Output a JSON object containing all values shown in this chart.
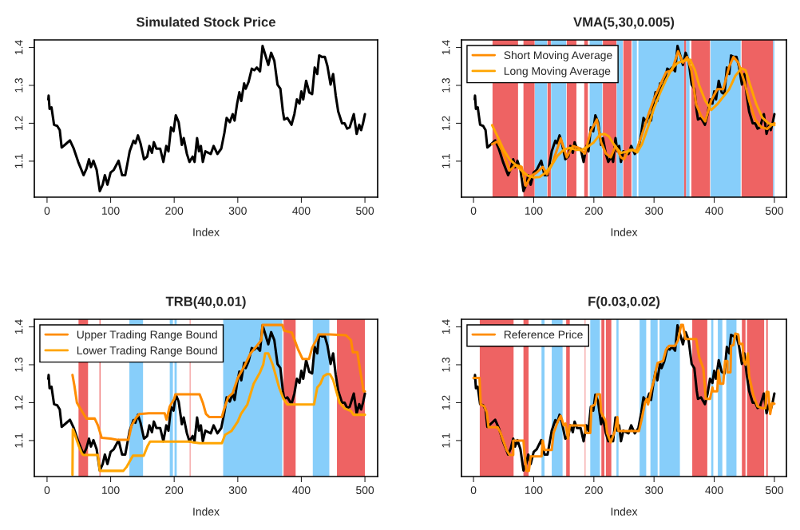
{
  "chart_data": [
    {
      "type": "line",
      "title": "Simulated Stock Price",
      "xlabel": "Index",
      "xlim": [
        -20,
        520
      ],
      "xticks": [
        0,
        100,
        200,
        300,
        400,
        500
      ],
      "ylim": [
        1.005,
        1.42
      ],
      "yticks": [
        1.1,
        1.2,
        1.3,
        1.4
      ],
      "grid": false,
      "legend": false,
      "series": [
        {
          "color": "#000000",
          "x": [
            2,
            2.5,
            4,
            7,
            11,
            16,
            20,
            23,
            28,
            36,
            42,
            49,
            57.5,
            62,
            66,
            69,
            73,
            78,
            83,
            87.5,
            91,
            95,
            100,
            105,
            112.5,
            118,
            123,
            130,
            136,
            139,
            143,
            147,
            152.5,
            157.5,
            161,
            165,
            168,
            172,
            178,
            183,
            187.5,
            191,
            195,
            199,
            202.5,
            207,
            212,
            215,
            220,
            224,
            229,
            232,
            236,
            239,
            242,
            245,
            249,
            257.5,
            262,
            268,
            274,
            279,
            282.5,
            287.5,
            292,
            295,
            299,
            302.5,
            305.5,
            310,
            312.5,
            317,
            322,
            326,
            330,
            335,
            339,
            343,
            348,
            352.5,
            357.5,
            362.5,
            367,
            371,
            373,
            378,
            384.5,
            389,
            393,
            397,
            400,
            403,
            407.5,
            412.5,
            417,
            421,
            425,
            428,
            432.5,
            437,
            441,
            446,
            450,
            454,
            458,
            464,
            468,
            472,
            476,
            482.5,
            487,
            491,
            494,
            497,
            500
          ],
          "values": [
            1.263,
            1.273,
            1.238,
            1.242,
            1.196,
            1.193,
            1.182,
            1.136,
            1.143,
            1.155,
            1.133,
            1.098,
            1.063,
            1.08,
            1.105,
            1.084,
            1.101,
            1.077,
            1.021,
            1.038,
            1.063,
            1.038,
            1.07,
            1.077,
            1.101,
            1.063,
            1.063,
            1.126,
            1.154,
            1.147,
            1.168,
            1.147,
            1.105,
            1.112,
            1.14,
            1.122,
            1.15,
            1.133,
            1.133,
            1.098,
            1.14,
            1.126,
            1.189,
            1.179,
            1.221,
            1.203,
            1.143,
            1.161,
            1.119,
            1.098,
            1.112,
            1.098,
            1.161,
            1.126,
            1.14,
            1.098,
            1.126,
            1.119,
            1.14,
            1.119,
            1.133,
            1.175,
            1.214,
            1.203,
            1.224,
            1.207,
            1.252,
            1.282,
            1.259,
            1.305,
            1.291,
            1.309,
            1.344,
            1.34,
            1.347,
            1.337,
            1.404,
            1.382,
            1.354,
            1.386,
            1.365,
            1.302,
            1.291,
            1.231,
            1.21,
            1.214,
            1.196,
            1.224,
            1.263,
            1.252,
            1.284,
            1.263,
            1.312,
            1.281,
            1.277,
            1.347,
            1.33,
            1.379,
            1.375,
            1.375,
            1.351,
            1.302,
            1.33,
            1.274,
            1.231,
            1.2,
            1.2,
            1.186,
            1.189,
            1.224,
            1.172,
            1.196,
            1.182,
            1.2,
            1.224
          ]
        }
      ]
    },
    {
      "type": "line",
      "title": "VMA(5,30,0.005)",
      "xlabel": "Index",
      "xlim": [
        -20,
        520
      ],
      "xticks": [
        0,
        100,
        200,
        300,
        400,
        500
      ],
      "ylim": [
        1.005,
        1.42
      ],
      "yticks": [
        1.1,
        1.2,
        1.3,
        1.4
      ],
      "grid": false,
      "legend": "top left",
      "bands": [
        {
          "axis": "x",
          "from": 31.6,
          "to": 74,
          "color": "#ee6363"
        },
        {
          "axis": "x",
          "from": 83,
          "to": 101.5,
          "color": "#ee6363"
        },
        {
          "axis": "x",
          "from": 102,
          "to": 122,
          "color": "#87cefa"
        },
        {
          "axis": "x",
          "from": 123,
          "to": 128.5,
          "color": "#ee6363"
        },
        {
          "axis": "x",
          "from": 129,
          "to": 154,
          "color": "#87cefa"
        },
        {
          "axis": "x",
          "from": 155,
          "to": 171,
          "color": "#ee6363"
        },
        {
          "axis": "x",
          "from": 184,
          "to": 190,
          "color": "#ee6363"
        },
        {
          "axis": "x",
          "from": 193,
          "to": 214,
          "color": "#87cefa"
        },
        {
          "axis": "x",
          "from": 215,
          "to": 237.5,
          "color": "#ee6363"
        },
        {
          "axis": "x",
          "from": 238,
          "to": 248,
          "color": "#87cefa"
        },
        {
          "axis": "x",
          "from": 249,
          "to": 262.5,
          "color": "#ee6363"
        },
        {
          "axis": "x",
          "from": 264,
          "to": 271.5,
          "color": "#87cefa"
        },
        {
          "axis": "x",
          "from": 274,
          "to": 350,
          "color": "#87cefa"
        },
        {
          "axis": "x",
          "from": 350,
          "to": 353.5,
          "color": "#ee6363"
        },
        {
          "axis": "x",
          "from": 353.5,
          "to": 359,
          "color": "#87cefa"
        },
        {
          "axis": "x",
          "from": 362,
          "to": 393,
          "color": "#ee6363"
        },
        {
          "axis": "x",
          "from": 394,
          "to": 444,
          "color": "#87cefa"
        },
        {
          "axis": "x",
          "from": 445.5,
          "to": 498,
          "color": "#ee6363"
        },
        {
          "axis": "x",
          "from": 498,
          "to": 500,
          "color": "#87cefa"
        }
      ],
      "series": [
        {
          "color": "#000000",
          "x": [
            2,
            2.5,
            4,
            7,
            11,
            16,
            20,
            23,
            28,
            36,
            42,
            49,
            57.5,
            62,
            66,
            69,
            73,
            78,
            83,
            87.5,
            91,
            95,
            100,
            105,
            112.5,
            118,
            123,
            130,
            136,
            139,
            143,
            147,
            152.5,
            157.5,
            161,
            165,
            168,
            172,
            178,
            183,
            187.5,
            191,
            195,
            199,
            202.5,
            207,
            212,
            215,
            220,
            224,
            229,
            232,
            236,
            239,
            242,
            245,
            249,
            257.5,
            262,
            268,
            274,
            279,
            282.5,
            287.5,
            292,
            295,
            299,
            302.5,
            305.5,
            310,
            312.5,
            317,
            322,
            326,
            330,
            335,
            339,
            343,
            348,
            352.5,
            357.5,
            362.5,
            367,
            371,
            373,
            378,
            384.5,
            389,
            393,
            397,
            400,
            403,
            407.5,
            412.5,
            417,
            421,
            425,
            428,
            432.5,
            437,
            441,
            446,
            450,
            454,
            458,
            464,
            468,
            472,
            476,
            482.5,
            487,
            491,
            494,
            497,
            500
          ],
          "values": [
            1.263,
            1.273,
            1.238,
            1.242,
            1.196,
            1.193,
            1.182,
            1.136,
            1.143,
            1.155,
            1.133,
            1.098,
            1.063,
            1.08,
            1.105,
            1.084,
            1.101,
            1.077,
            1.021,
            1.038,
            1.063,
            1.038,
            1.07,
            1.077,
            1.101,
            1.063,
            1.063,
            1.126,
            1.154,
            1.147,
            1.168,
            1.147,
            1.105,
            1.112,
            1.14,
            1.122,
            1.15,
            1.133,
            1.133,
            1.098,
            1.14,
            1.126,
            1.189,
            1.179,
            1.221,
            1.203,
            1.143,
            1.161,
            1.119,
            1.098,
            1.112,
            1.098,
            1.161,
            1.126,
            1.14,
            1.098,
            1.126,
            1.119,
            1.14,
            1.119,
            1.133,
            1.175,
            1.214,
            1.203,
            1.224,
            1.207,
            1.252,
            1.282,
            1.259,
            1.305,
            1.291,
            1.309,
            1.344,
            1.34,
            1.347,
            1.337,
            1.404,
            1.382,
            1.354,
            1.386,
            1.365,
            1.302,
            1.291,
            1.231,
            1.21,
            1.214,
            1.196,
            1.224,
            1.263,
            1.252,
            1.284,
            1.263,
            1.312,
            1.281,
            1.277,
            1.347,
            1.33,
            1.379,
            1.375,
            1.375,
            1.351,
            1.302,
            1.33,
            1.274,
            1.231,
            1.2,
            1.2,
            1.186,
            1.189,
            1.224,
            1.172,
            1.196,
            1.182,
            1.2,
            1.224
          ]
        },
        {
          "name": "Short Moving Average",
          "color": "#ff8c00",
          "x": [
            31,
            40,
            50,
            60,
            70,
            80,
            87,
            95,
            105,
            115,
            122,
            130,
            145,
            155,
            165,
            175,
            185,
            195,
            205,
            212,
            220,
            228,
            236,
            245,
            250,
            258,
            265,
            270,
            280,
            290,
            300,
            310,
            320,
            330,
            340,
            348,
            355,
            362,
            370,
            378,
            385,
            395,
            405,
            415,
            425,
            432,
            440,
            450,
            458,
            468,
            478,
            488,
            495,
            500
          ],
          "values": [
            1.145,
            1.152,
            1.12,
            1.075,
            1.09,
            1.085,
            1.035,
            1.06,
            1.07,
            1.085,
            1.065,
            1.09,
            1.16,
            1.11,
            1.14,
            1.135,
            1.12,
            1.18,
            1.21,
            1.15,
            1.12,
            1.11,
            1.14,
            1.11,
            1.105,
            1.13,
            1.13,
            1.125,
            1.17,
            1.22,
            1.265,
            1.3,
            1.335,
            1.34,
            1.39,
            1.36,
            1.375,
            1.34,
            1.25,
            1.22,
            1.205,
            1.26,
            1.29,
            1.29,
            1.35,
            1.375,
            1.36,
            1.31,
            1.26,
            1.21,
            1.19,
            1.185,
            1.195,
            1.2
          ]
        },
        {
          "name": "Long Moving Average",
          "color": "#ffa500",
          "x": [
            31,
            40,
            50,
            60,
            70,
            80,
            90,
            100,
            110,
            120,
            130,
            140,
            150,
            160,
            170,
            180,
            190,
            200,
            210,
            218,
            225,
            235,
            245,
            255,
            265,
            272,
            280,
            290,
            300,
            310,
            320,
            330,
            340,
            350,
            360,
            368,
            375,
            385,
            395,
            405,
            415,
            425,
            435,
            445,
            452,
            460,
            470,
            480,
            490,
            500
          ],
          "values": [
            1.195,
            1.165,
            1.13,
            1.105,
            1.09,
            1.075,
            1.062,
            1.057,
            1.058,
            1.07,
            1.09,
            1.115,
            1.13,
            1.135,
            1.13,
            1.13,
            1.138,
            1.15,
            1.17,
            1.172,
            1.165,
            1.14,
            1.122,
            1.125,
            1.13,
            1.123,
            1.145,
            1.19,
            1.24,
            1.28,
            1.315,
            1.345,
            1.36,
            1.365,
            1.368,
            1.34,
            1.3,
            1.26,
            1.235,
            1.25,
            1.27,
            1.29,
            1.325,
            1.345,
            1.34,
            1.3,
            1.25,
            1.215,
            1.2,
            1.195
          ]
        }
      ]
    },
    {
      "type": "line",
      "title": "TRB(40,0.01)",
      "xlabel": "Index",
      "xlim": [
        -20,
        520
      ],
      "xticks": [
        0,
        100,
        200,
        300,
        400,
        500
      ],
      "ylim": [
        1.005,
        1.42
      ],
      "yticks": [
        1.1,
        1.2,
        1.3,
        1.4
      ],
      "grid": false,
      "legend": "top left",
      "bands": [
        {
          "axis": "x",
          "from": 49.5,
          "to": 64.5,
          "color": "#ee6363"
        },
        {
          "axis": "x",
          "from": 82.5,
          "to": 84,
          "color": "#ee6363"
        },
        {
          "axis": "x",
          "from": 129.5,
          "to": 151,
          "color": "#87cefa"
        },
        {
          "axis": "x",
          "from": 193,
          "to": 198,
          "color": "#87cefa"
        },
        {
          "axis": "x",
          "from": 200.5,
          "to": 204,
          "color": "#87cefa"
        },
        {
          "axis": "x",
          "from": 224.5,
          "to": 225.5,
          "color": "#ee6363"
        },
        {
          "axis": "x",
          "from": 277,
          "to": 370,
          "color": "#87cefa"
        },
        {
          "axis": "x",
          "from": 372,
          "to": 391,
          "color": "#ee6363"
        },
        {
          "axis": "x",
          "from": 418,
          "to": 444,
          "color": "#87cefa"
        },
        {
          "axis": "x",
          "from": 456,
          "to": 500,
          "color": "#ee6363"
        }
      ],
      "series": [
        {
          "color": "#000000",
          "x": [
            2,
            2.5,
            4,
            7,
            11,
            16,
            20,
            23,
            28,
            36,
            42,
            49,
            57.5,
            62,
            66,
            69,
            73,
            78,
            83,
            87.5,
            91,
            95,
            100,
            105,
            112.5,
            118,
            123,
            130,
            136,
            139,
            143,
            147,
            152.5,
            157.5,
            161,
            165,
            168,
            172,
            178,
            183,
            187.5,
            191,
            195,
            199,
            202.5,
            207,
            212,
            215,
            220,
            224,
            229,
            232,
            236,
            239,
            242,
            245,
            249,
            257.5,
            262,
            268,
            274,
            279,
            282.5,
            287.5,
            292,
            295,
            299,
            302.5,
            305.5,
            310,
            312.5,
            317,
            322,
            326,
            330,
            335,
            339,
            343,
            348,
            352.5,
            357.5,
            362.5,
            367,
            371,
            373,
            378,
            384.5,
            389,
            393,
            397,
            400,
            403,
            407.5,
            412.5,
            417,
            421,
            425,
            428,
            432.5,
            437,
            441,
            446,
            450,
            454,
            458,
            464,
            468,
            472,
            476,
            482.5,
            487,
            491,
            494,
            497,
            500
          ],
          "values": [
            1.263,
            1.273,
            1.238,
            1.242,
            1.196,
            1.193,
            1.182,
            1.136,
            1.143,
            1.155,
            1.133,
            1.098,
            1.063,
            1.08,
            1.105,
            1.084,
            1.101,
            1.077,
            1.021,
            1.038,
            1.063,
            1.038,
            1.07,
            1.077,
            1.101,
            1.063,
            1.063,
            1.126,
            1.154,
            1.147,
            1.168,
            1.147,
            1.105,
            1.112,
            1.14,
            1.122,
            1.15,
            1.133,
            1.133,
            1.098,
            1.14,
            1.126,
            1.189,
            1.179,
            1.221,
            1.203,
            1.143,
            1.161,
            1.119,
            1.098,
            1.112,
            1.098,
            1.161,
            1.126,
            1.14,
            1.098,
            1.126,
            1.119,
            1.14,
            1.119,
            1.133,
            1.175,
            1.214,
            1.203,
            1.224,
            1.207,
            1.252,
            1.282,
            1.259,
            1.305,
            1.291,
            1.309,
            1.344,
            1.34,
            1.347,
            1.337,
            1.404,
            1.382,
            1.354,
            1.386,
            1.365,
            1.302,
            1.291,
            1.231,
            1.21,
            1.214,
            1.196,
            1.224,
            1.263,
            1.252,
            1.284,
            1.263,
            1.312,
            1.281,
            1.277,
            1.347,
            1.33,
            1.379,
            1.375,
            1.375,
            1.351,
            1.302,
            1.33,
            1.274,
            1.231,
            1.2,
            1.2,
            1.186,
            1.189,
            1.224,
            1.172,
            1.196,
            1.182,
            1.2,
            1.224
          ]
        },
        {
          "name": "Upper Trading Range Bound",
          "color": "#ff8c00",
          "x": [
            40,
            43,
            47,
            52,
            62,
            75,
            80,
            86,
            100,
            110,
            128,
            133,
            140,
            145,
            160,
            185,
            188,
            193,
            200,
            202,
            240,
            245,
            250,
            255,
            275,
            278,
            285,
            292,
            300,
            310,
            320,
            330,
            337,
            339,
            370,
            373,
            385,
            395,
            402,
            412,
            417,
            425,
            427,
            445,
            470,
            478,
            481,
            488,
            493,
            498,
            500
          ],
          "values": [
            1.273,
            1.245,
            1.2,
            1.185,
            1.158,
            1.158,
            1.14,
            1.107,
            1.105,
            1.102,
            1.102,
            1.14,
            1.16,
            1.17,
            1.172,
            1.172,
            1.155,
            1.19,
            1.21,
            1.222,
            1.222,
            1.2,
            1.17,
            1.162,
            1.162,
            1.18,
            1.215,
            1.225,
            1.265,
            1.295,
            1.33,
            1.35,
            1.365,
            1.405,
            1.405,
            1.39,
            1.385,
            1.34,
            1.315,
            1.315,
            1.345,
            1.37,
            1.38,
            1.38,
            1.378,
            1.365,
            1.333,
            1.333,
            1.28,
            1.23,
            1.23
          ]
        },
        {
          "name": "Lower Trading Range Bound",
          "color": "#ffa500",
          "x": [
            40,
            40.5,
            45,
            50,
            55,
            57,
            80,
            83,
            120,
            125,
            130,
            135,
            152,
            158,
            162,
            190,
            225,
            230,
            240,
            275,
            280,
            290,
            300,
            305,
            315,
            325,
            335,
            340,
            343,
            348,
            355,
            365,
            372,
            378,
            420,
            425,
            430,
            435,
            440,
            445,
            450,
            455,
            460,
            468,
            478,
            482,
            500
          ],
          "values": [
            1.01,
            1.13,
            1.11,
            1.085,
            1.065,
            1.062,
            1.062,
            1.02,
            1.02,
            1.03,
            1.045,
            1.06,
            1.06,
            1.085,
            1.097,
            1.097,
            1.097,
            1.095,
            1.093,
            1.093,
            1.115,
            1.125,
            1.15,
            1.17,
            1.195,
            1.25,
            1.28,
            1.3,
            1.33,
            1.33,
            1.3,
            1.24,
            1.21,
            1.195,
            1.195,
            1.24,
            1.25,
            1.27,
            1.275,
            1.275,
            1.26,
            1.23,
            1.2,
            1.185,
            1.178,
            1.168,
            1.168
          ]
        }
      ]
    },
    {
      "type": "line",
      "title": "F(0.03,0.02)",
      "xlabel": "Index",
      "xlim": [
        -20,
        520
      ],
      "xticks": [
        0,
        100,
        200,
        300,
        400,
        500
      ],
      "ylim": [
        1.005,
        1.42
      ],
      "yticks": [
        1.1,
        1.2,
        1.3,
        1.4
      ],
      "grid": false,
      "legend": "top left",
      "bands": [
        {
          "axis": "x",
          "from": 10.4,
          "to": 66.6,
          "color": "#ee6363"
        },
        {
          "axis": "x",
          "from": 83,
          "to": 91.5,
          "color": "#ee6363"
        },
        {
          "axis": "x",
          "from": 113,
          "to": 118,
          "color": "#87cefa"
        },
        {
          "axis": "x",
          "from": 130,
          "to": 148,
          "color": "#87cefa"
        },
        {
          "axis": "x",
          "from": 154,
          "to": 160,
          "color": "#ee6363"
        },
        {
          "axis": "x",
          "from": 185,
          "to": 186,
          "color": "#ee6363"
        },
        {
          "axis": "x",
          "from": 194,
          "to": 210,
          "color": "#87cefa"
        },
        {
          "axis": "x",
          "from": 212.5,
          "to": 217.5,
          "color": "#ee6363"
        },
        {
          "axis": "x",
          "from": 220,
          "to": 229,
          "color": "#ee6363"
        },
        {
          "axis": "x",
          "from": 237.5,
          "to": 241,
          "color": "#87cefa"
        },
        {
          "axis": "x",
          "from": 276,
          "to": 287,
          "color": "#87cefa"
        },
        {
          "axis": "x",
          "from": 294,
          "to": 306,
          "color": "#87cefa"
        },
        {
          "axis": "x",
          "from": 309,
          "to": 343,
          "color": "#87cefa"
        },
        {
          "axis": "x",
          "from": 363.5,
          "to": 388.5,
          "color": "#ee6363"
        },
        {
          "axis": "x",
          "from": 395,
          "to": 398.5,
          "color": "#87cefa"
        },
        {
          "axis": "x",
          "from": 406,
          "to": 413.5,
          "color": "#87cefa"
        },
        {
          "axis": "x",
          "from": 420,
          "to": 437,
          "color": "#87cefa"
        },
        {
          "axis": "x",
          "from": 446,
          "to": 452,
          "color": "#ee6363"
        },
        {
          "axis": "x",
          "from": 454.5,
          "to": 483,
          "color": "#ee6363"
        },
        {
          "axis": "x",
          "from": 486.5,
          "to": 489,
          "color": "#ee6363"
        }
      ],
      "series": [
        {
          "color": "#000000",
          "x": [
            2,
            2.5,
            4,
            7,
            11,
            16,
            20,
            23,
            28,
            36,
            42,
            49,
            57.5,
            62,
            66,
            69,
            73,
            78,
            83,
            87.5,
            91,
            95,
            100,
            105,
            112.5,
            118,
            123,
            130,
            136,
            139,
            143,
            147,
            152.5,
            157.5,
            161,
            165,
            168,
            172,
            178,
            183,
            187.5,
            191,
            195,
            199,
            202.5,
            207,
            212,
            215,
            220,
            224,
            229,
            232,
            236,
            239,
            242,
            245,
            249,
            257.5,
            262,
            268,
            274,
            279,
            282.5,
            287.5,
            292,
            295,
            299,
            302.5,
            305.5,
            310,
            312.5,
            317,
            322,
            326,
            330,
            335,
            339,
            343,
            348,
            352.5,
            357.5,
            362.5,
            367,
            371,
            373,
            378,
            384.5,
            389,
            393,
            397,
            400,
            403,
            407.5,
            412.5,
            417,
            421,
            425,
            428,
            432.5,
            437,
            441,
            446,
            450,
            454,
            458,
            464,
            468,
            472,
            476,
            482.5,
            487,
            491,
            494,
            497,
            500
          ],
          "values": [
            1.263,
            1.273,
            1.238,
            1.242,
            1.196,
            1.193,
            1.182,
            1.136,
            1.143,
            1.155,
            1.133,
            1.098,
            1.063,
            1.08,
            1.105,
            1.084,
            1.101,
            1.077,
            1.021,
            1.038,
            1.063,
            1.038,
            1.07,
            1.077,
            1.101,
            1.063,
            1.063,
            1.126,
            1.154,
            1.147,
            1.168,
            1.147,
            1.105,
            1.112,
            1.14,
            1.122,
            1.15,
            1.133,
            1.133,
            1.098,
            1.14,
            1.126,
            1.189,
            1.179,
            1.221,
            1.203,
            1.143,
            1.161,
            1.119,
            1.098,
            1.112,
            1.098,
            1.161,
            1.126,
            1.14,
            1.098,
            1.126,
            1.119,
            1.14,
            1.119,
            1.133,
            1.175,
            1.214,
            1.203,
            1.224,
            1.207,
            1.252,
            1.282,
            1.259,
            1.305,
            1.291,
            1.309,
            1.344,
            1.34,
            1.347,
            1.337,
            1.404,
            1.382,
            1.354,
            1.386,
            1.365,
            1.302,
            1.291,
            1.231,
            1.21,
            1.214,
            1.196,
            1.224,
            1.263,
            1.252,
            1.284,
            1.263,
            1.312,
            1.281,
            1.277,
            1.347,
            1.33,
            1.379,
            1.375,
            1.375,
            1.351,
            1.302,
            1.33,
            1.274,
            1.231,
            1.2,
            1.2,
            1.186,
            1.189,
            1.224,
            1.172,
            1.196,
            1.182,
            1.2,
            1.224
          ]
        },
        {
          "name": "Reference Price",
          "color": "#ff8c00",
          "x": [
            0,
            10,
            12,
            18,
            22,
            25,
            40,
            45,
            55,
            60,
            66,
            66,
            83,
            85,
            88,
            92,
            95,
            113,
            115,
            118,
            130,
            133,
            140,
            145,
            150,
            153,
            157,
            160,
            185,
            186,
            194,
            196,
            202,
            205,
            210,
            212,
            217,
            220,
            222,
            228,
            235,
            239,
            241,
            275,
            280,
            285,
            288,
            290,
            295,
            300,
            303,
            306,
            315,
            320,
            325,
            335,
            340,
            345,
            348,
            352,
            370,
            375,
            382,
            386,
            393,
            397,
            398,
            405,
            407,
            410,
            415,
            418,
            422,
            422,
            427,
            428,
            432,
            435,
            440,
            442,
            447,
            449,
            452,
            456,
            458,
            465,
            472,
            480,
            485,
            487,
            490,
            493,
            496,
            500
          ],
          "values": [
            1.265,
            1.265,
            1.195,
            1.19,
            1.175,
            1.135,
            1.135,
            1.12,
            1.075,
            1.062,
            1.062,
            1.1,
            1.1,
            1.06,
            1.02,
            1.02,
            1.058,
            1.058,
            1.1,
            1.075,
            1.075,
            1.12,
            1.15,
            1.165,
            1.14,
            1.145,
            1.105,
            1.14,
            1.14,
            1.12,
            1.12,
            1.19,
            1.195,
            1.222,
            1.222,
            1.175,
            1.16,
            1.15,
            1.12,
            1.095,
            1.125,
            1.162,
            1.125,
            1.125,
            1.16,
            1.2,
            1.21,
            1.195,
            1.23,
            1.26,
            1.285,
            1.305,
            1.31,
            1.34,
            1.35,
            1.35,
            1.365,
            1.405,
            1.405,
            1.368,
            1.368,
            1.32,
            1.29,
            1.21,
            1.21,
            1.24,
            1.23,
            1.23,
            1.285,
            1.25,
            1.25,
            1.31,
            1.31,
            1.28,
            1.28,
            1.35,
            1.352,
            1.382,
            1.38,
            1.355,
            1.355,
            1.31,
            1.3,
            1.33,
            1.27,
            1.22,
            1.19,
            1.185,
            1.185,
            1.228,
            1.228,
            1.17,
            1.198,
            1.197
          ]
        }
      ]
    }
  ]
}
